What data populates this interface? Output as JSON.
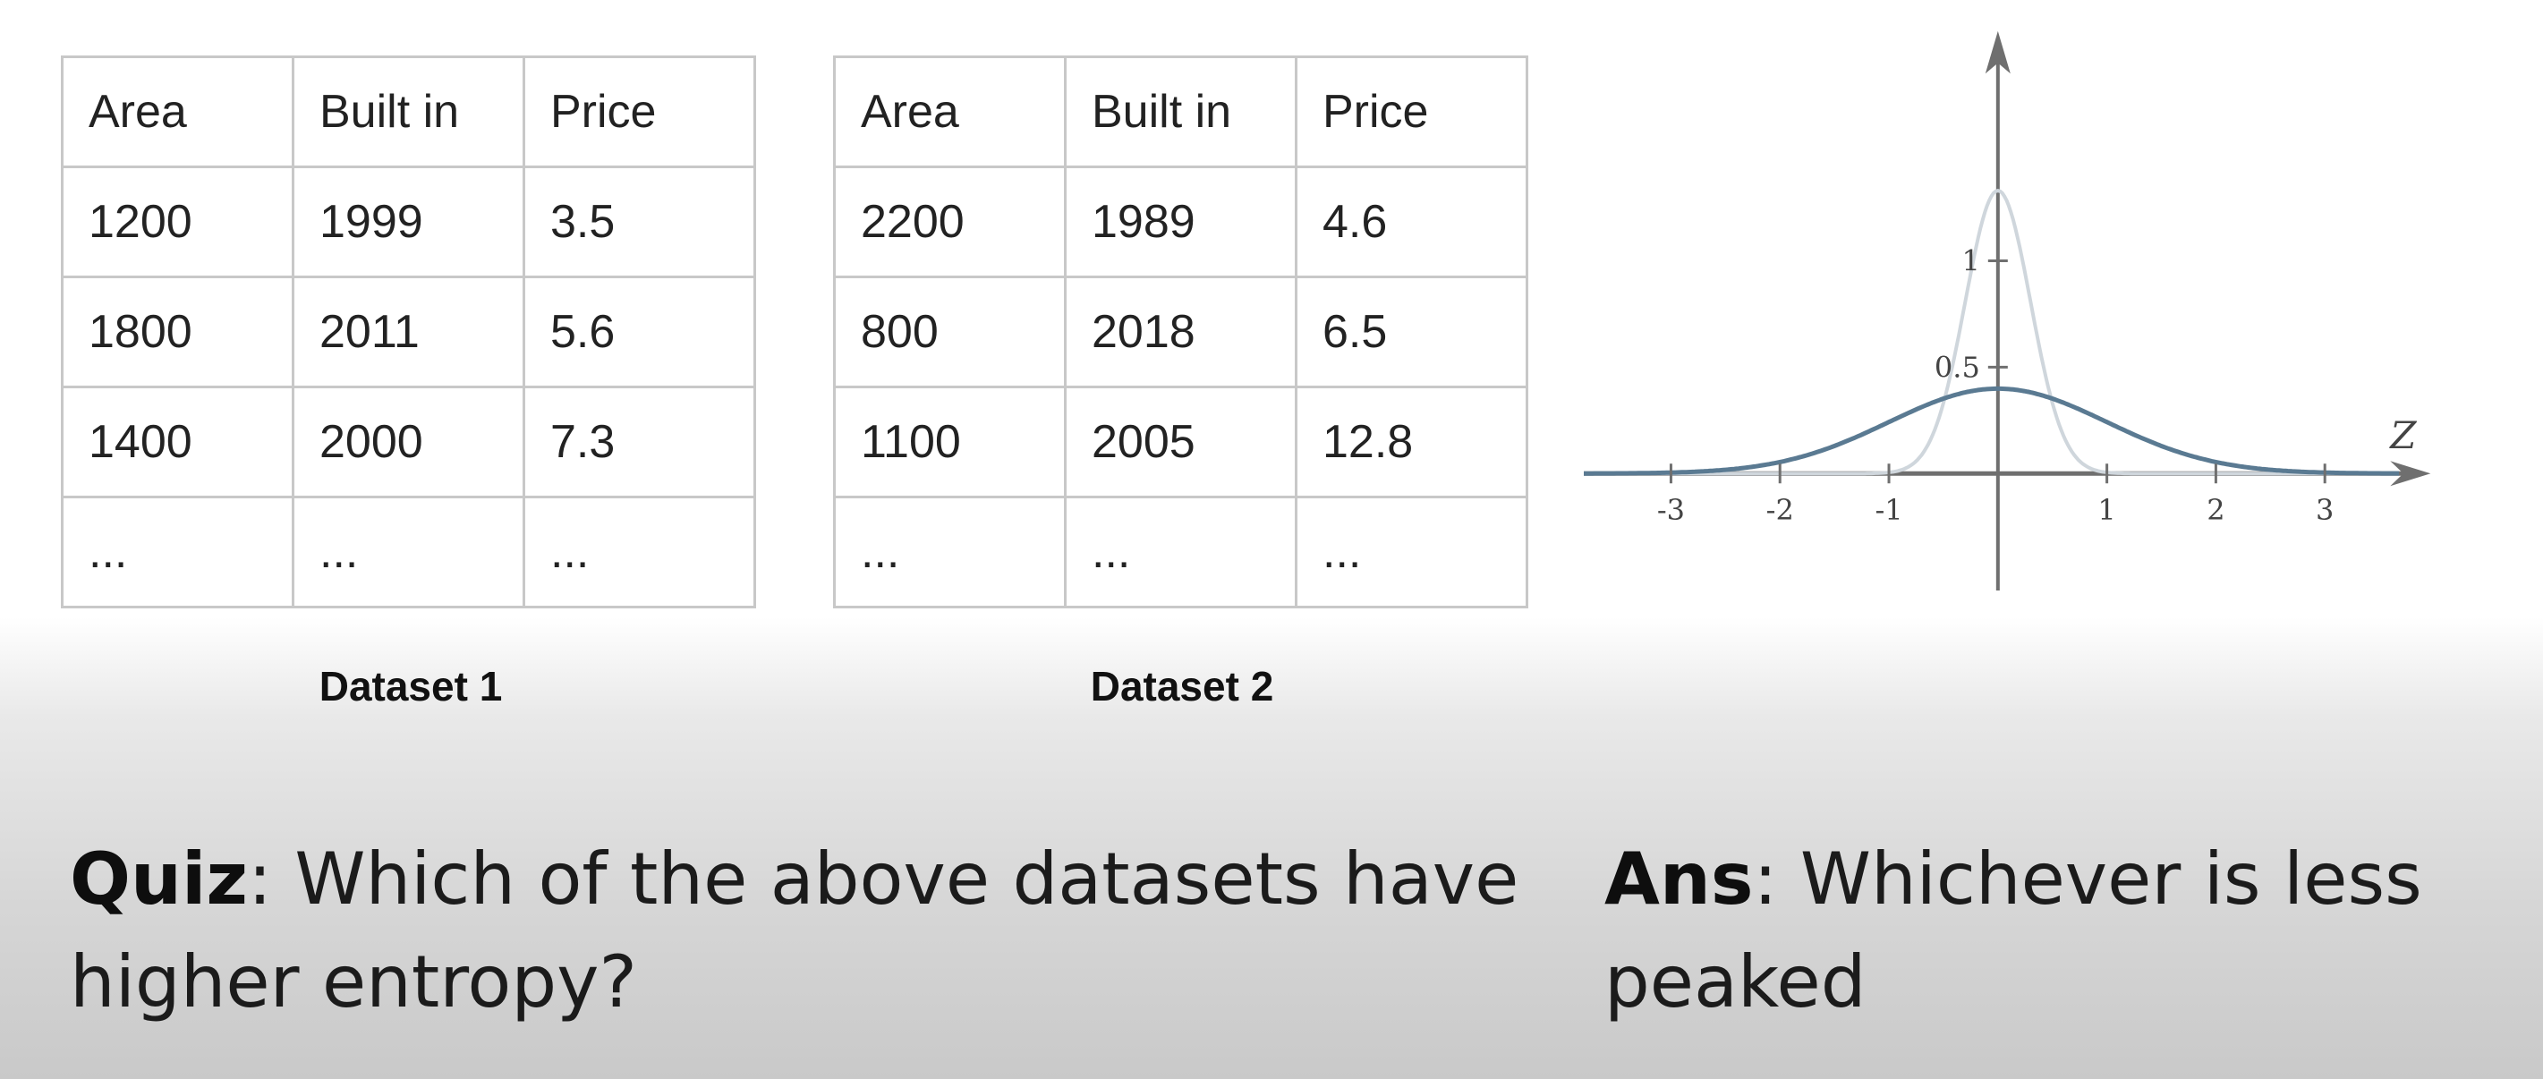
{
  "dataset1": {
    "caption": "Dataset 1",
    "headers": [
      "Area",
      "Built in",
      "Price"
    ],
    "rows": [
      [
        "1200",
        "1999",
        "3.5"
      ],
      [
        "1800",
        "2011",
        "5.6"
      ],
      [
        "1400",
        "2000",
        "7.3"
      ],
      [
        "...",
        "...",
        "..."
      ]
    ]
  },
  "dataset2": {
    "caption": "Dataset 2",
    "headers": [
      "Area",
      "Built in",
      "Price"
    ],
    "rows": [
      [
        "2200",
        "1989",
        "4.6"
      ],
      [
        "800",
        "2018",
        "6.5"
      ],
      [
        "1100",
        "2005",
        "12.8"
      ],
      [
        "...",
        "...",
        "..."
      ]
    ]
  },
  "chart_data": {
    "type": "line",
    "title": "",
    "xlabel": "Z",
    "ylabel": "",
    "xlim": [
      -3.8,
      4
    ],
    "ylim": [
      -0.55,
      2.1
    ],
    "x_ticks": [
      "-3",
      "-2",
      "-1",
      "1",
      "2",
      "3"
    ],
    "y_ticks": [
      "0.5",
      "1"
    ],
    "grid": false,
    "series": [
      {
        "color": "#5a7a92",
        "sigma": 1,
        "formula": "standard normal pdf"
      },
      {
        "color": "#cfd6dc",
        "sigma": 0.3,
        "formula": "narrow normal pdf"
      }
    ]
  },
  "quiz": {
    "label": "Quiz",
    "text": ": Which of the above datasets have higher entropy?"
  },
  "answer": {
    "label": "Ans",
    "text": ": Whichever is less peaked"
  }
}
